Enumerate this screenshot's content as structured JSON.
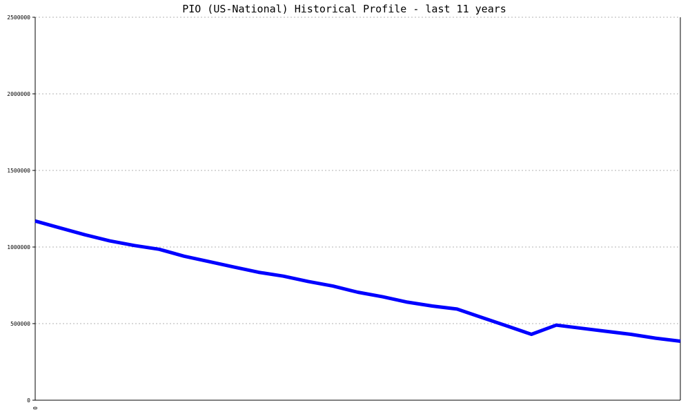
{
  "chart_data": {
    "type": "line",
    "title": "PIO (US-National) Historical Profile - last 11 years",
    "xlabel": "",
    "ylabel": "",
    "x_tick_labels": [
      "0"
    ],
    "y_ticks": [
      0,
      500000,
      1000000,
      1500000,
      2000000,
      2500000
    ],
    "y_tick_labels": [
      "0",
      "500000",
      "1000000",
      "1500000",
      "2000000",
      "2500000"
    ],
    "ylim": [
      0,
      2500000
    ],
    "grid": true,
    "legend": "none",
    "series": [
      {
        "color": "#0000ff",
        "values": [
          1170000,
          1125000,
          1080000,
          1040000,
          1010000,
          985000,
          940000,
          905000,
          870000,
          835000,
          810000,
          775000,
          745000,
          705000,
          675000,
          640000,
          615000,
          595000,
          540000,
          485000,
          430000,
          490000,
          470000,
          450000,
          430000,
          405000,
          385000
        ]
      }
    ]
  }
}
